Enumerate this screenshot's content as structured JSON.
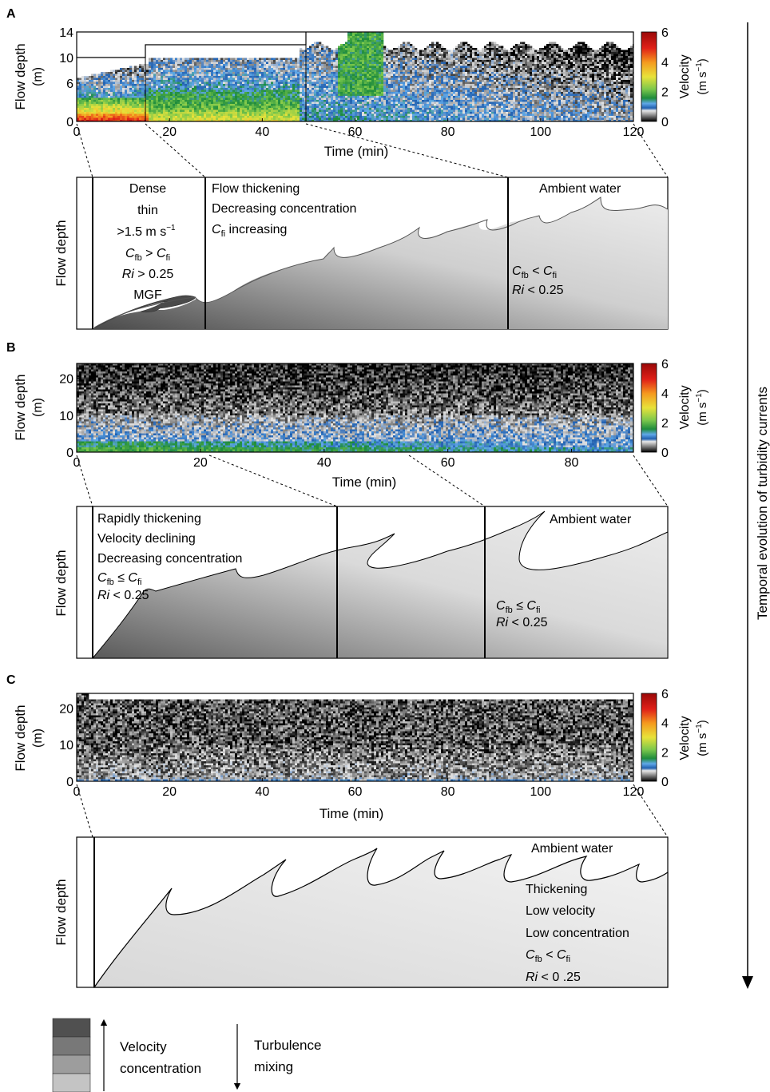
{
  "panels": {
    "A": {
      "letter": "A",
      "heatmap": {
        "ylabel": "Flow depth",
        "yunit": "(m)",
        "yticks": [
          "0",
          "6",
          "10",
          "14"
        ],
        "xticks": [
          "0",
          "20",
          "40",
          "60",
          "80",
          "100",
          "120"
        ],
        "xlabel": "Time (min)",
        "colorbar": {
          "label": "Velocity",
          "unit": "(m s",
          "unit_exp": "−1",
          "unit_close": ")",
          "ticks": [
            "0",
            "2",
            "4",
            "6"
          ]
        }
      },
      "schematic": {
        "ylabel": "Flow depth",
        "zone1": [
          "Dense",
          "thin",
          ">1.5 m s",
          "−1"
        ],
        "zone1_cmp": {
          "a": "C",
          "a_sub": "fb",
          "op": " > ",
          "b": "C",
          "b_sub": "fi"
        },
        "zone1_ri": {
          "ri": "Ri",
          "rest": " > 0.25"
        },
        "zone1_mgf": "MGF",
        "zone2": [
          "Flow thickening",
          "Decreasing concentration"
        ],
        "zone2_cfi": {
          "c": "C",
          "sub": "fi",
          "rest": " increasing"
        },
        "ambient": "Ambient water",
        "zone3_cmp": {
          "a": "C",
          "a_sub": "fb",
          "op": " < ",
          "b": "C",
          "b_sub": "fi"
        },
        "zone3_ri": {
          "ri": "Ri",
          "rest": " < 0.25"
        }
      }
    },
    "B": {
      "letter": "B",
      "heatmap": {
        "ylabel": "Flow depth",
        "yunit": "(m)",
        "yticks": [
          "0",
          "10",
          "20"
        ],
        "xticks": [
          "0",
          "20",
          "40",
          "60",
          "80"
        ],
        "xlabel": "Time (min)",
        "colorbar": {
          "label": "Velocity",
          "unit": "(m s",
          "unit_exp": "−1",
          "unit_close": ")",
          "ticks": [
            "0",
            "2",
            "4",
            "6"
          ]
        }
      },
      "schematic": {
        "ylabel": "Flow depth",
        "zone1": [
          "Rapidly thickening",
          "Velocity declining",
          "Decreasing concentration"
        ],
        "zone1_cmp": {
          "a": "C",
          "a_sub": "fb",
          "op": " ≤ ",
          "b": "C",
          "b_sub": "fi"
        },
        "zone1_ri": {
          "ri": "Ri",
          "rest": " < 0.25"
        },
        "ambient": "Ambient water",
        "zone3_cmp": {
          "a": "C",
          "a_sub": "fb",
          "op": " ≤ ",
          "b": "C",
          "b_sub": "fi"
        },
        "zone3_ri": {
          "ri": "Ri",
          "rest": " < 0.25"
        }
      }
    },
    "C": {
      "letter": "C",
      "heatmap": {
        "ylabel": "Flow depth",
        "yunit": "(m)",
        "yticks": [
          "0",
          "10",
          "20"
        ],
        "xticks": [
          "0",
          "20",
          "40",
          "60",
          "80",
          "100",
          "120"
        ],
        "xlabel": "Time (min)",
        "colorbar": {
          "label": "Velocity",
          "unit": "(m s",
          "unit_exp": "−1",
          "unit_close": ")",
          "ticks": [
            "0",
            "2",
            "4",
            "6"
          ]
        }
      },
      "schematic": {
        "ylabel": "Flow depth",
        "ambient": "Ambient water",
        "lines": [
          "Thickening",
          "Low velocity",
          "Low concentration"
        ],
        "cmp": {
          "a": "C",
          "a_sub": "fb",
          "op": " < ",
          "b": "C",
          "b_sub": "fi"
        },
        "ri": {
          "ri": "Ri",
          "rest": " < 0 .25"
        }
      }
    }
  },
  "side_label": "Temporal evolution of turbidity currents",
  "legend": {
    "left_line1": "Velocity",
    "left_line2": "concentration",
    "right_line1": "Turbulence",
    "right_line2": "mixing",
    "swatches": [
      "#505050",
      "#787878",
      "#9d9d9d",
      "#c4c4c4"
    ]
  },
  "colors": {
    "velocity_scale": [
      "#000000",
      "#7a7a7a",
      "#e6e6e6",
      "#1f5fb0",
      "#5aa0e0",
      "#1e8c3c",
      "#6ec04a",
      "#e8e23a",
      "#f59a1e",
      "#e02018",
      "#a00a0a"
    ],
    "schematic_dark": "#4a4a4a",
    "schematic_light": "#e6e6e6"
  }
}
